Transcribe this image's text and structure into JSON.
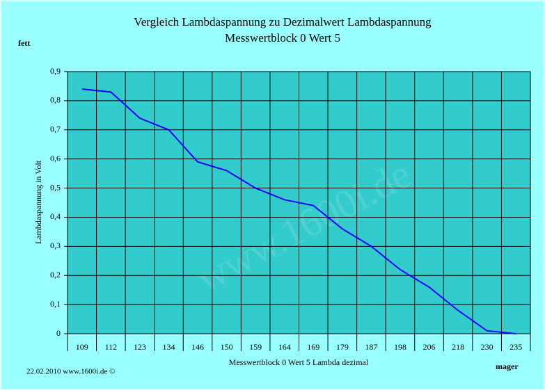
{
  "chart_data": {
    "type": "line",
    "title": "Vergleich Lambdaspannung zu Dezimalwert Lambdaspannung",
    "subtitle": "Messwertblock 0 Wert 5",
    "y_label": "Lambdaspannung in Volt",
    "x_label": "Messwertblock 0 Wert 5 Lambda dezimal",
    "top_note": "fett",
    "bottom_note": "mager",
    "footer": "22.02.2010 www.1600i.de ©",
    "watermark": "www.1600i.de",
    "categories": [
      "109",
      "112",
      "123",
      "134",
      "146",
      "150",
      "159",
      "164",
      "169",
      "179",
      "187",
      "198",
      "206",
      "218",
      "230",
      "235"
    ],
    "series": [
      {
        "name": "Lambdaspannung",
        "color": "#0000ff",
        "values": [
          0.84,
          0.83,
          0.74,
          0.7,
          0.59,
          0.56,
          0.5,
          0.46,
          0.44,
          0.36,
          0.3,
          0.22,
          0.16,
          0.08,
          0.01,
          0.0
        ]
      }
    ],
    "ylim": [
      0,
      0.9
    ],
    "yticks": [
      0,
      {
        "value": 0.1,
        "label": "0,1"
      },
      {
        "value": 0.2,
        "label": "0,2"
      },
      {
        "value": 0.3,
        "label": "0,3"
      },
      {
        "value": 0.4,
        "label": "0,4"
      },
      {
        "value": 0.5,
        "label": "0,5"
      },
      {
        "value": 0.6,
        "label": "0,6"
      },
      {
        "value": 0.7,
        "label": "0,7"
      },
      {
        "value": 0.8,
        "label": "0,8"
      },
      {
        "value": 0.9,
        "label": "0,9"
      }
    ],
    "grid": true
  }
}
